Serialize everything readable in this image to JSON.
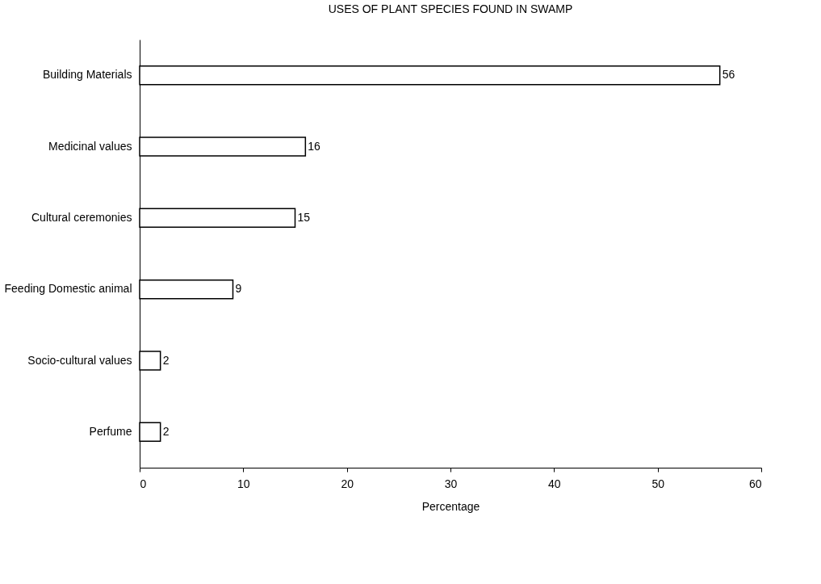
{
  "chart_data": {
    "type": "bar",
    "orientation": "horizontal",
    "title": "USES OF PLANT SPECIES FOUND IN SWAMP",
    "xlabel": "Percentage",
    "categories": [
      "Building Materials",
      "Medicinal values",
      "Cultural ceremonies",
      "Feeding Domestic animal",
      "Socio-cultural values",
      "Perfume"
    ],
    "values": [
      56,
      16,
      15,
      9,
      2,
      2
    ],
    "color": "#ffffff",
    "xlim": [
      0,
      60
    ],
    "xticks": [
      0,
      10,
      20,
      30,
      40,
      50,
      60
    ],
    "data_labels": true
  }
}
